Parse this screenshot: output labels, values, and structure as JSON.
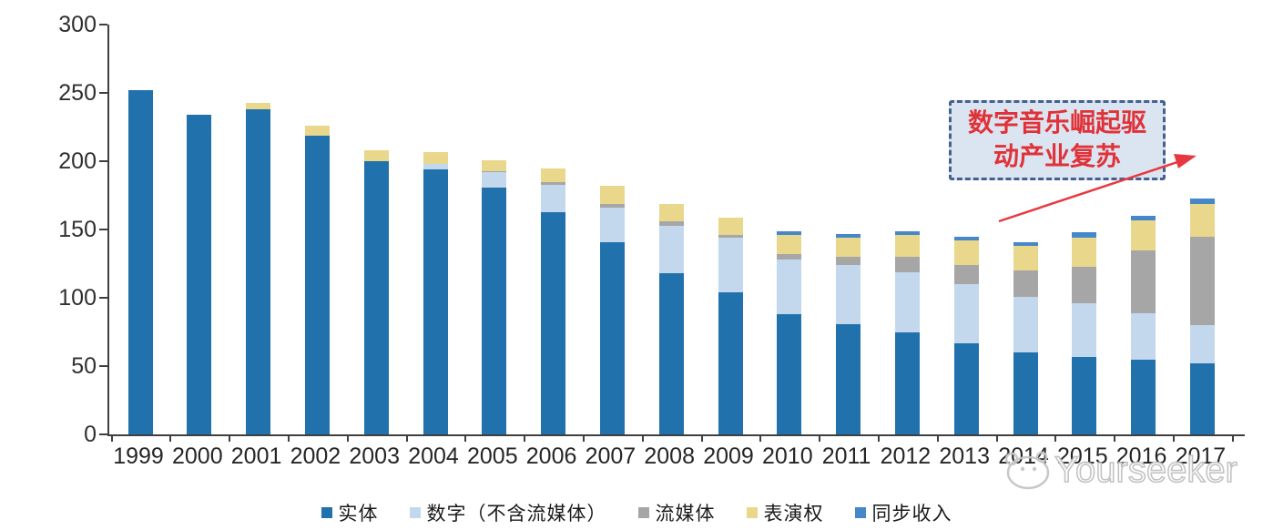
{
  "chart_data": {
    "type": "bar",
    "stacked": true,
    "title": "",
    "xlabel": "",
    "ylabel": "",
    "categories": [
      "1999",
      "2000",
      "2001",
      "2002",
      "2003",
      "2004",
      "2005",
      "2006",
      "2007",
      "2008",
      "2009",
      "2010",
      "2011",
      "2012",
      "2013",
      "2014",
      "2015",
      "2016",
      "2017"
    ],
    "series": [
      {
        "name": "实体",
        "color": "#2171AC",
        "values": [
          252,
          234,
          238,
          219,
          200,
          194,
          181,
          163,
          141,
          118,
          104,
          88,
          81,
          75,
          67,
          60,
          57,
          55,
          52
        ]
      },
      {
        "name": "数字（不含流媒体）",
        "color": "#C3D8ED",
        "values": [
          0,
          0,
          0,
          0,
          0,
          4,
          11,
          20,
          25,
          35,
          40,
          40,
          43,
          44,
          43,
          41,
          39,
          34,
          28
        ]
      },
      {
        "name": "流媒体",
        "color": "#A6A6A6",
        "values": [
          0,
          0,
          0,
          0,
          0,
          0,
          1,
          2,
          3,
          3,
          2,
          4,
          6,
          11,
          14,
          19,
          27,
          46,
          65
        ]
      },
      {
        "name": "表演权",
        "color": "#E9D78B",
        "values": [
          0,
          0,
          5,
          7,
          8,
          9,
          8,
          10,
          13,
          13,
          13,
          14,
          14,
          16,
          18,
          18,
          21,
          22,
          24
        ]
      },
      {
        "name": "同步收入",
        "color": "#4587C8",
        "values": [
          0,
          0,
          0,
          0,
          0,
          0,
          0,
          0,
          0,
          0,
          0,
          3,
          3,
          3,
          3,
          3,
          4,
          3,
          4
        ]
      }
    ],
    "totals": [
      252,
      234,
      243,
      226,
      208,
      207,
      201,
      195,
      182,
      169,
      159,
      149,
      147,
      149,
      145,
      141,
      148,
      160,
      173
    ],
    "ylim": [
      0,
      300
    ],
    "yticks": [
      0,
      50,
      100,
      150,
      200,
      250,
      300
    ],
    "grid": false,
    "legend_position": "bottom",
    "axis_color": "#3f3f3f"
  },
  "annotation": {
    "line1": "数字音乐崛起驱",
    "line2": "动产业复苏",
    "box_fill": "#dbe5f1",
    "border_color": "#44608f",
    "text_color": "#e03238",
    "arrow_color": "#e8383f"
  },
  "watermark": {
    "label": "Yourseeker",
    "logo": "hippo-face-icon",
    "color": "#bfbfbf"
  }
}
